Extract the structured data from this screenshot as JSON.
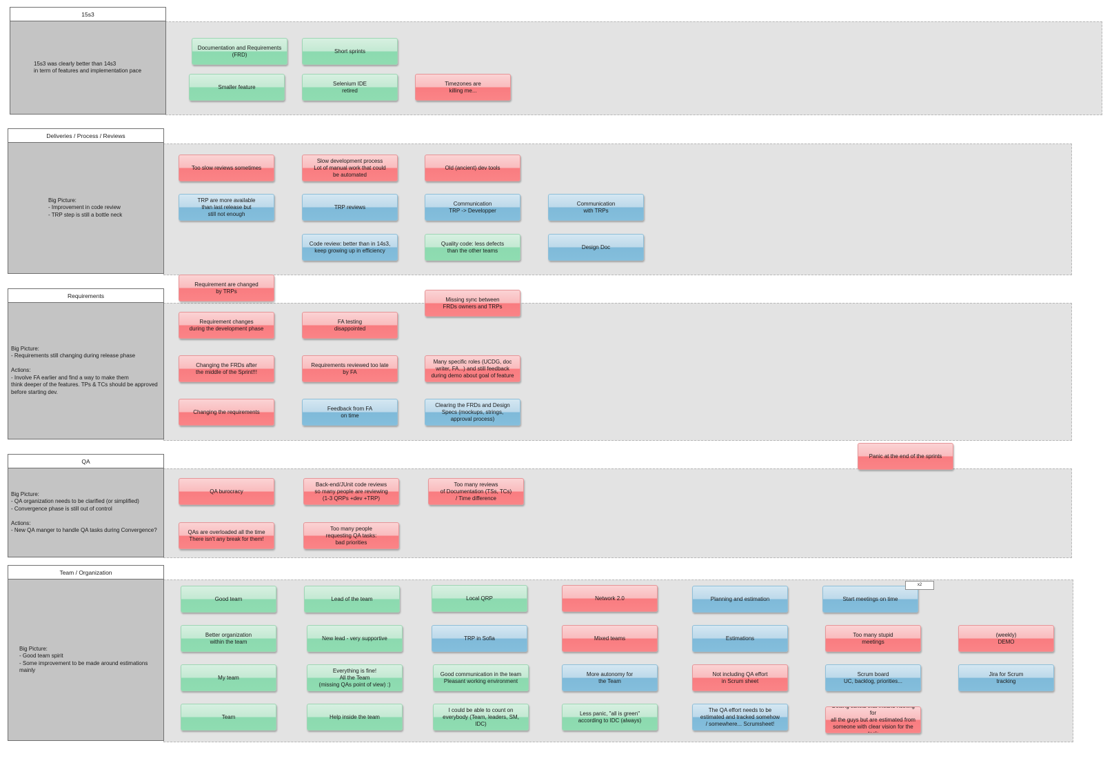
{
  "sections": [
    {
      "title": "15s3",
      "note": "15s3 was clearly better than 14s3\nin term of features and implementation pace",
      "cards": [
        {
          "text": "Documentation and Requirements\n(FRD)",
          "color": "green"
        },
        {
          "text": "Short sprints",
          "color": "green"
        },
        {
          "text": "Smaller feature",
          "color": "green"
        },
        {
          "text": "Selenium IDE\nretired",
          "color": "green"
        },
        {
          "text": "Timezones are\nkilling me...",
          "color": "red"
        }
      ]
    },
    {
      "title": "Deliveries / Process / Reviews",
      "note": "Big Picture:\n- Improvement in code review\n- TRP step is still a bottle neck",
      "cards": [
        {
          "text": "Too slow reviews sometimes",
          "color": "red"
        },
        {
          "text": "Slow development process\nLot of manual work that could\nbe automated",
          "color": "red"
        },
        {
          "text": "Old (ancient) dev tools",
          "color": "red"
        },
        {
          "text": "TRP are more available\nthan last release but\nstill not enough",
          "color": "blue"
        },
        {
          "text": "TRP reviews",
          "color": "blue"
        },
        {
          "text": "Communication\nTRP -> Developper",
          "color": "blue"
        },
        {
          "text": "Communication\nwith TRPs",
          "color": "blue"
        },
        {
          "text": "Code review: better than in 14s3,\nkeep growing up in efficiency",
          "color": "blue"
        },
        {
          "text": "Quality code: less defects\nthan the other teams",
          "color": "green"
        },
        {
          "text": "Design Doc",
          "color": "blue"
        }
      ]
    },
    {
      "title": "Requirements",
      "note": "Big Picture:\n- Requirements still changing during release phase\n\nActions:\n- Involve FA earlier and find a way to make them\nthink deeper of the features. TPs & TCs should be approved\nbefore starting dev.",
      "cards": [
        {
          "text": "Requirement are changed\nby TRPs",
          "color": "red"
        },
        {
          "text": "Missing sync between\nFRDs owners and TRPs",
          "color": "red"
        },
        {
          "text": "Requirement changes\nduring the development phase",
          "color": "red"
        },
        {
          "text": "FA testing\ndisappointed",
          "color": "red"
        },
        {
          "text": "Changing the FRDs after\nthe middle of the Sprint!!!",
          "color": "red"
        },
        {
          "text": "Requirements reviewed too late\nby FA",
          "color": "red"
        },
        {
          "text": "Many specific roles (UCDG, doc\nwriter, FA...) and still feedback\nduring demo about goal of feature",
          "color": "red"
        },
        {
          "text": "Changing the requirements",
          "color": "red"
        },
        {
          "text": "Feedback from FA\non time",
          "color": "blue"
        },
        {
          "text": "Clearing the FRDs and Design\nSpecs (mockups, strings,\napproval process)",
          "color": "blue"
        }
      ]
    },
    {
      "title": "QA",
      "note": "Big Picture:\n- QA organization needs to be clarified (or simplified)\n- Convergence phase is still out of control\n\nActions:\n- New QA manger to handle QA tasks during Convergence?",
      "cards": [
        {
          "text": "Panic at the end of the sprints",
          "color": "red"
        },
        {
          "text": "QA burocracy",
          "color": "red"
        },
        {
          "text": "Back-end/JUnit code reviews\nso many people are reviewing\n(1-3 QRPs +dev +TRP)",
          "color": "red"
        },
        {
          "text": "Too many reviews\nof  Documentation (TSs, TCs)\n/ Time difference",
          "color": "red"
        },
        {
          "text": "QAs are overloaded all the time\nThere isn't any break for them!",
          "color": "red"
        },
        {
          "text": "Too many people\nrequesting QA tasks:\nbad priorities",
          "color": "red"
        }
      ]
    },
    {
      "title": "Team / Organization",
      "note": "Big Picture:\n- Good team spirit\n- Some improvement to be made around estimations\nmainly",
      "tag": "x2",
      "cards": [
        {
          "text": "Good team",
          "color": "green"
        },
        {
          "text": "Lead of the team",
          "color": "green"
        },
        {
          "text": "Local QRP",
          "color": "green"
        },
        {
          "text": "Network 2.0",
          "color": "red"
        },
        {
          "text": "Planning and estimation",
          "color": "blue"
        },
        {
          "text": "Start meetings on time",
          "color": "blue"
        },
        {
          "text": "Better organization\nwithin the team",
          "color": "green"
        },
        {
          "text": "New lead - very supportive",
          "color": "green"
        },
        {
          "text": "TRP in Sofia",
          "color": "blue"
        },
        {
          "text": "Mixed teams",
          "color": "red"
        },
        {
          "text": "Estimations",
          "color": "blue"
        },
        {
          "text": "Too many stupid\nmeetings",
          "color": "red"
        },
        {
          "text": "(weekly)\nDEMO",
          "color": "red"
        },
        {
          "text": "My team",
          "color": "green"
        },
        {
          "text": "Everything is fine!\nAll the Team\n(missing QAs point of view) :)",
          "color": "green"
        },
        {
          "text": "Good communication in the team\nPleasant working environment",
          "color": "green"
        },
        {
          "text": "More autonomy for\nthe Team",
          "color": "blue"
        },
        {
          "text": "Not including QA effort\nin Scrum sheet",
          "color": "red"
        },
        {
          "text": "Scrum board\nUC, backlog, priorities...",
          "color": "blue"
        },
        {
          "text": "Jira for Scrum\ntracking",
          "color": "blue"
        },
        {
          "text": "Team",
          "color": "green"
        },
        {
          "text": "Help inside the team",
          "color": "green"
        },
        {
          "text": "I could be able to count on\neverybody (Team, leaders, SM, IDC)",
          "color": "green"
        },
        {
          "text": "Less panic, \"all is green\"\naccording to IDC (always)",
          "color": "green"
        },
        {
          "text": "The QA effort needs to be\nestimated and tracked somehow\n/ somewhere... Scrumsheet!",
          "color": "blue"
        },
        {
          "text": "Getting tickets that means nothing for\nall the guys but are estimated from\nsomeone with clear vision for the task",
          "color": "red"
        }
      ]
    }
  ]
}
